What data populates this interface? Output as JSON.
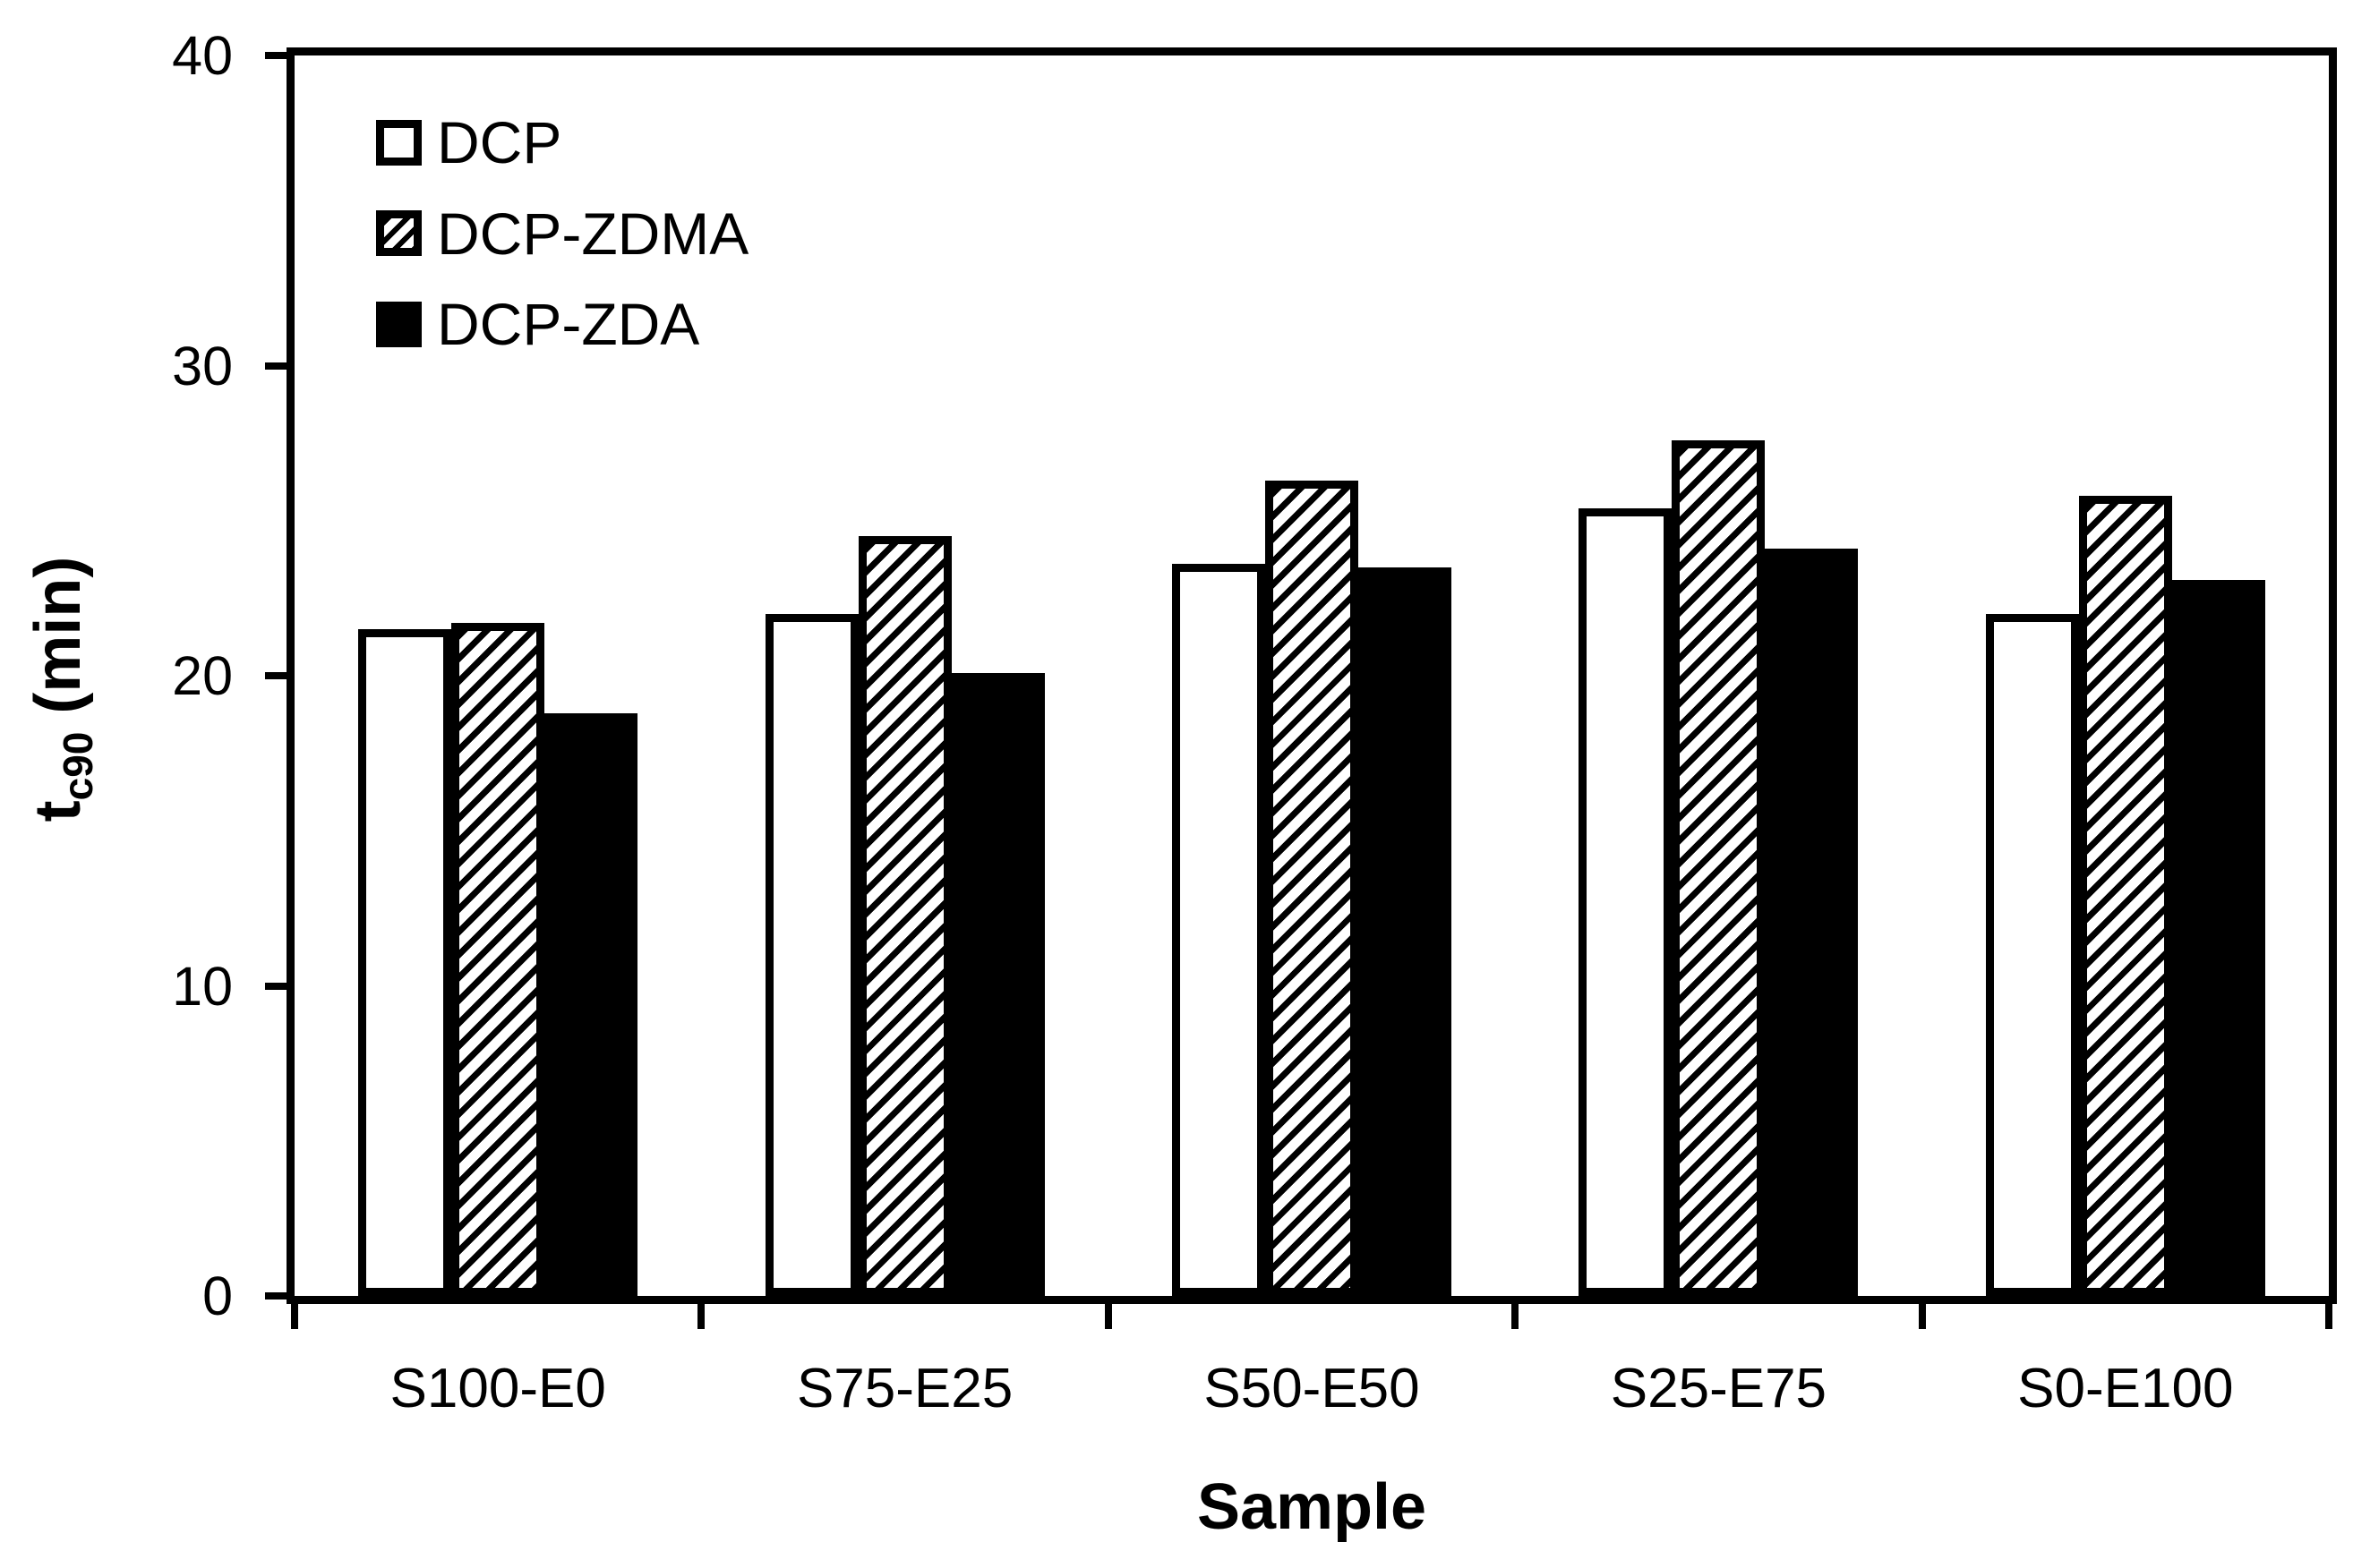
{
  "figure": {
    "background": "#ffffff",
    "ink_color": "#000000"
  },
  "chart_data": {
    "type": "bar",
    "title": "",
    "xlabel": "Sample",
    "ylabel": "t_c90 (min)",
    "ylabel_parts": {
      "base": "t",
      "subscript": "c90",
      "rest": " (min)"
    },
    "categories": [
      "S100-E0",
      "S75-E25",
      "S50-E50",
      "S25-E75",
      "S0-E100"
    ],
    "series": [
      {
        "name": "DCP",
        "style": "white",
        "values": [
          21.5,
          22.0,
          23.6,
          25.4,
          22.0
        ]
      },
      {
        "name": "DCP-ZDMA",
        "style": "hatched",
        "values": [
          21.7,
          24.5,
          26.3,
          27.6,
          25.8
        ]
      },
      {
        "name": "DCP-ZDA",
        "style": "black",
        "values": [
          18.8,
          20.1,
          23.5,
          24.1,
          23.1
        ]
      }
    ],
    "ylim": [
      0,
      40
    ],
    "yticks": [
      "0",
      "10",
      "20",
      "30",
      "40"
    ],
    "grid": false,
    "legend_position": "top-left-inside",
    "bar_styles": {
      "white": {
        "fill": "#ffffff",
        "border": "#000000"
      },
      "hatched": {
        "fill": "diagonal-hatch",
        "border": "#000000"
      },
      "black": {
        "fill": "#000000",
        "border": "#000000"
      }
    }
  },
  "legend": {
    "items": [
      {
        "label": "DCP",
        "swatch": "white"
      },
      {
        "label": "DCP-ZDMA",
        "swatch": "hatched"
      },
      {
        "label": "DCP-ZDA",
        "swatch": "black"
      }
    ]
  }
}
